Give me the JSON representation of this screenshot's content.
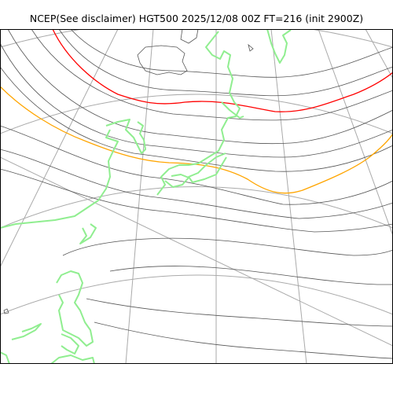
{
  "title": "NCEP(See disclaimer) HGT500 2025/12/08 00Z FT=216 (init 2900Z)",
  "colors": {
    "contour": "#555555",
    "graticule": "#aaaaaa",
    "coastline": "#90ee90",
    "highlight_red": "#ff0000",
    "highlight_orange": "#ffa500",
    "frame": "#000000"
  }
}
